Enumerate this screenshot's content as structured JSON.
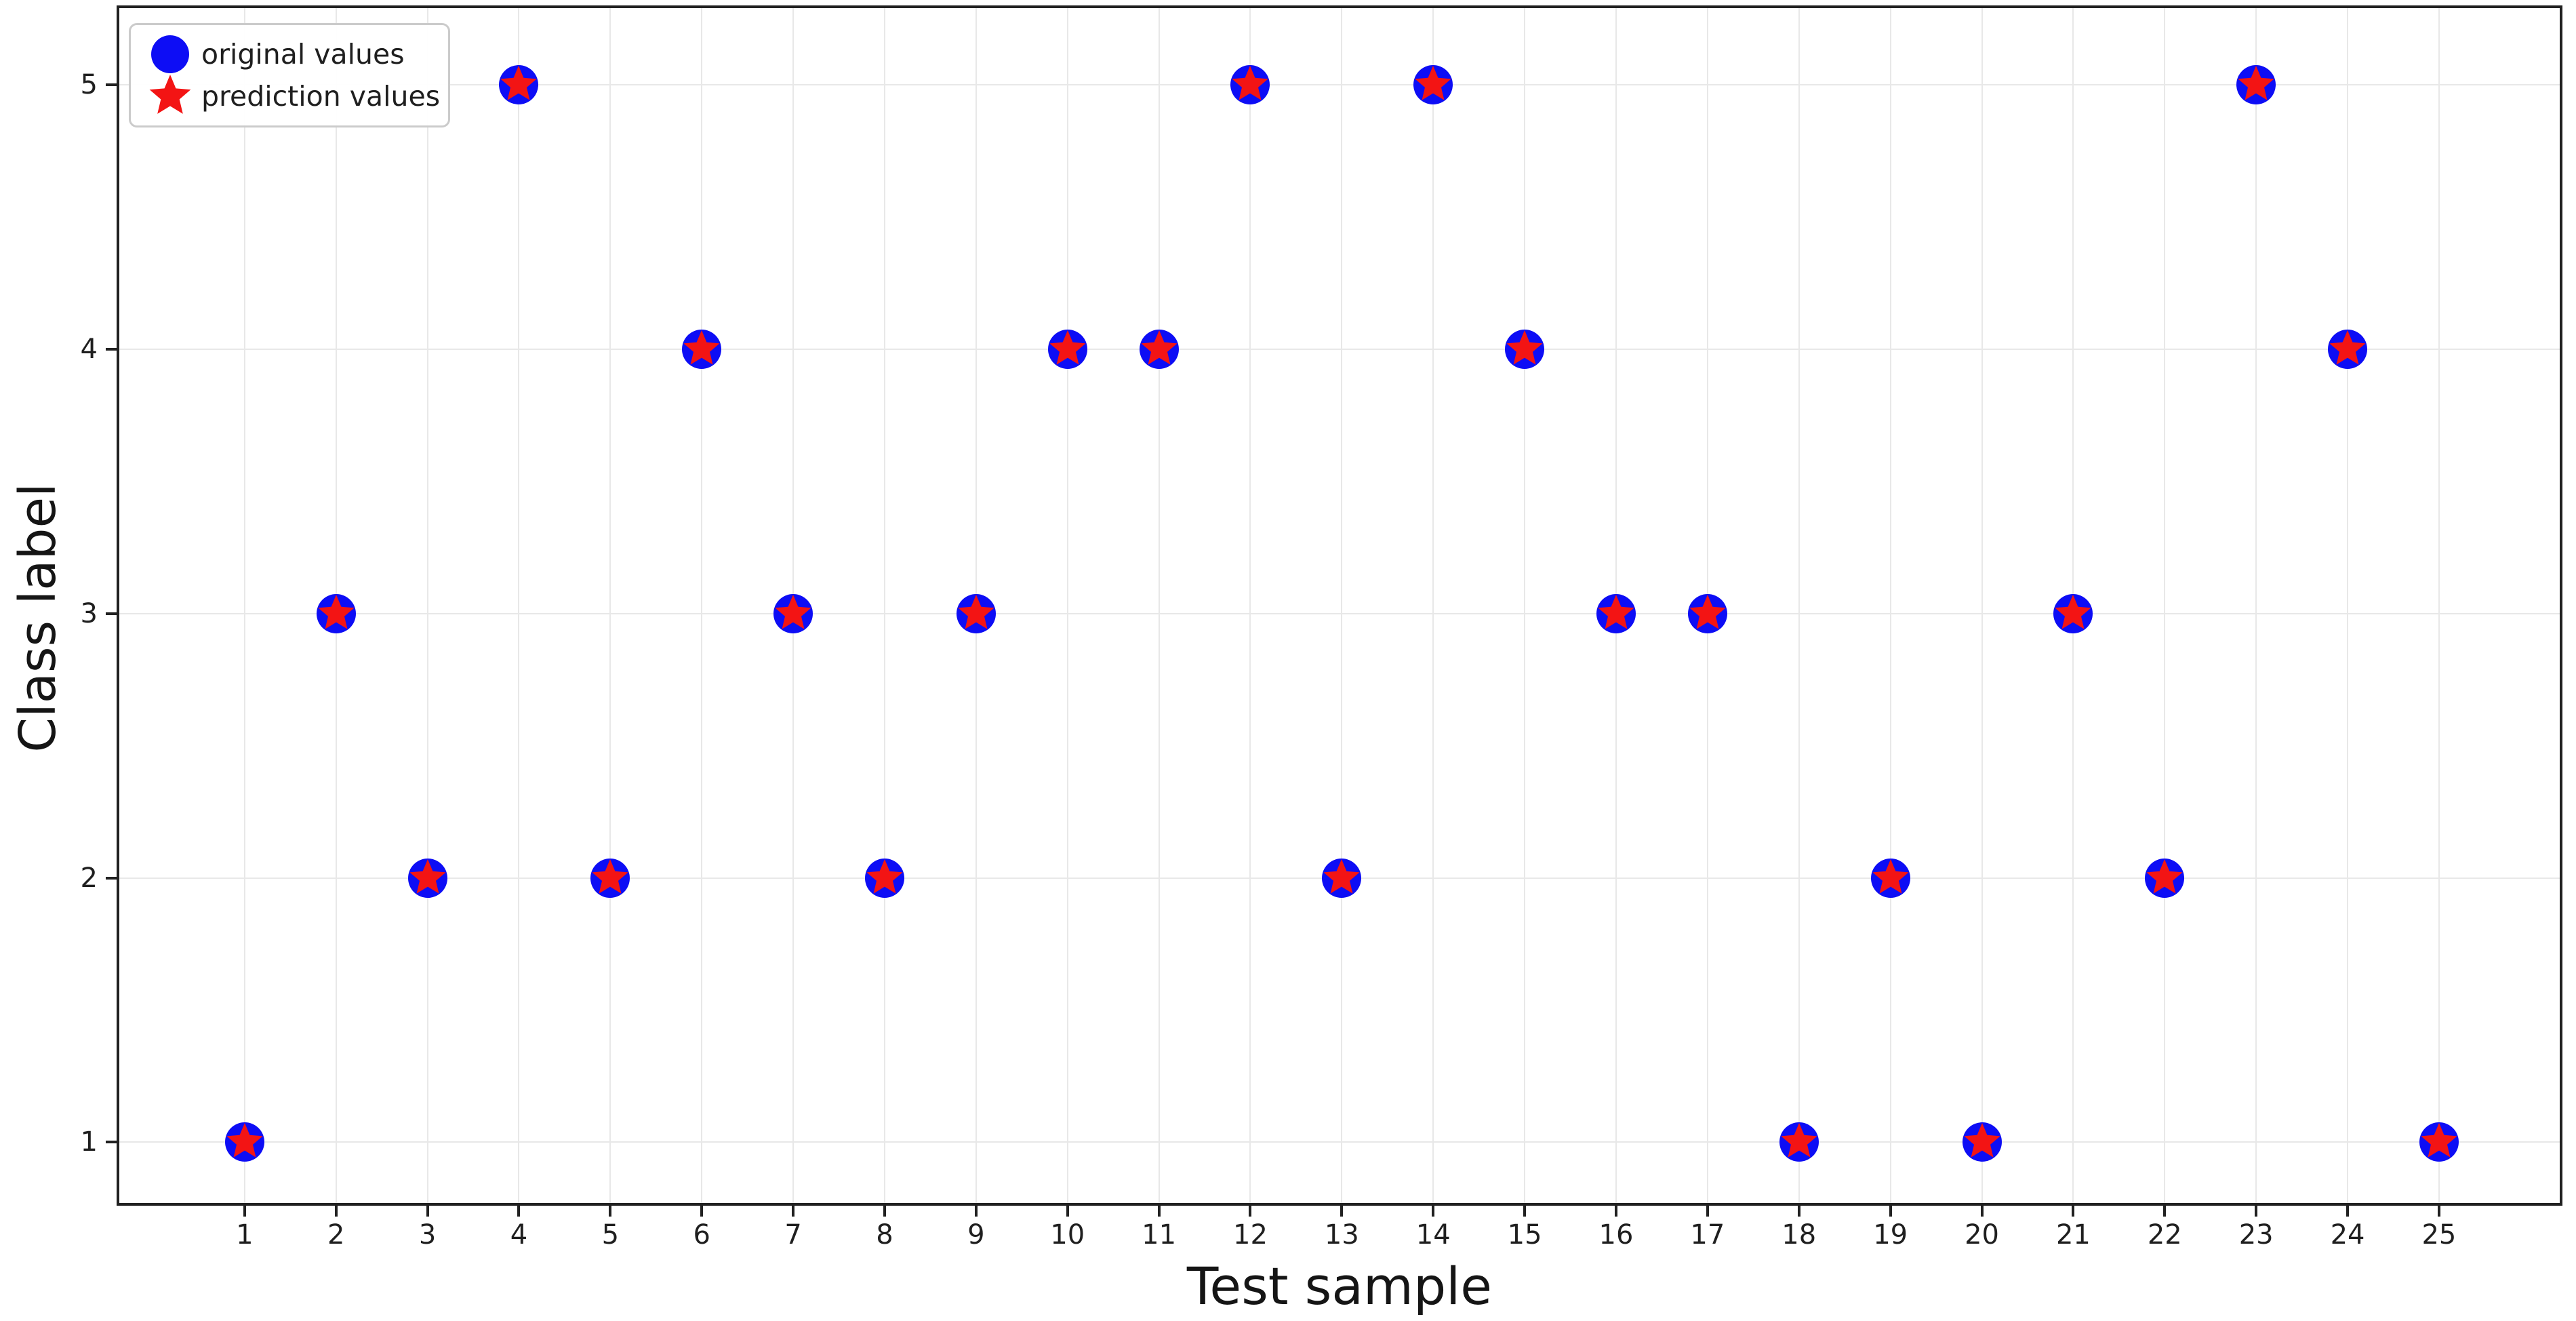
{
  "axes": {
    "xlabel": "Test sample",
    "ylabel": "Class label",
    "x_tick_labels": [
      "1",
      "2",
      "3",
      "4",
      "5",
      "6",
      "7",
      "8",
      "9",
      "10",
      "11",
      "12",
      "13",
      "14",
      "15",
      "16",
      "17",
      "18",
      "19",
      "20",
      "21",
      "22",
      "23",
      "24",
      "25"
    ],
    "y_tick_labels": [
      "1",
      "2",
      "3",
      "4",
      "5"
    ]
  },
  "legend": {
    "items": [
      {
        "label": "original values",
        "marker": "circle-icon",
        "color": "#0d0df5"
      },
      {
        "label": "prediction values",
        "marker": "star-icon",
        "color": "#f31414"
      }
    ]
  },
  "chart_data": {
    "type": "scatter",
    "xlabel": "Test sample",
    "ylabel": "Class label",
    "x": [
      1,
      2,
      3,
      4,
      5,
      6,
      7,
      8,
      9,
      10,
      11,
      12,
      13,
      14,
      15,
      16,
      17,
      18,
      19,
      20,
      21,
      22,
      23,
      24,
      25
    ],
    "series": [
      {
        "name": "original values",
        "marker": "circle",
        "color": "#0d0df5",
        "values": [
          1,
          3,
          2,
          5,
          2,
          4,
          3,
          2,
          3,
          4,
          4,
          5,
          2,
          5,
          4,
          3,
          3,
          1,
          2,
          1,
          3,
          2,
          5,
          4,
          1
        ]
      },
      {
        "name": "prediction values",
        "marker": "star",
        "color": "#f31414",
        "values": [
          1,
          3,
          2,
          5,
          2,
          4,
          3,
          2,
          3,
          4,
          4,
          5,
          2,
          5,
          4,
          3,
          3,
          1,
          2,
          1,
          3,
          2,
          5,
          4,
          1
        ]
      }
    ],
    "x_ticks": [
      1,
      2,
      3,
      4,
      5,
      6,
      7,
      8,
      9,
      10,
      11,
      12,
      13,
      14,
      15,
      16,
      17,
      18,
      19,
      20,
      21,
      22,
      23,
      24,
      25
    ],
    "y_ticks": [
      1,
      2,
      3,
      4,
      5
    ],
    "xlim": [
      -0.4,
      26.35
    ],
    "ylim": [
      0.76,
      5.3
    ],
    "grid": true,
    "legend_position": "upper left",
    "colors": {
      "grid": "#e8e8e8",
      "spine": "#212121",
      "text": "#1f1f1f"
    }
  }
}
